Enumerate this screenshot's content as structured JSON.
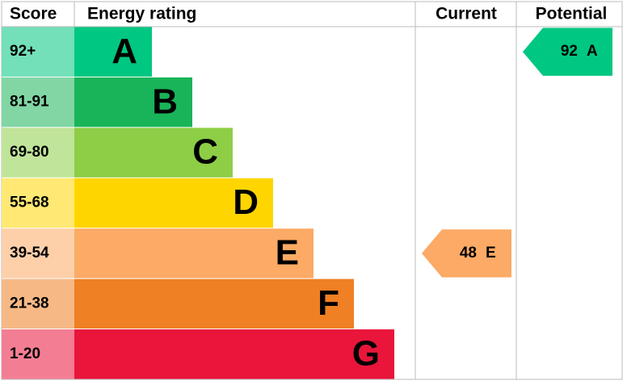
{
  "chart_data": {
    "type": "energy-rating",
    "headers": {
      "score": "Score",
      "rating": "Energy rating",
      "current": "Current",
      "potential": "Potential"
    },
    "bands": [
      {
        "score": "92+",
        "letter": "A",
        "color": "#00c781"
      },
      {
        "score": "81-91",
        "letter": "B",
        "color": "#19b459"
      },
      {
        "score": "69-80",
        "letter": "C",
        "color": "#8dce46"
      },
      {
        "score": "55-68",
        "letter": "D",
        "color": "#ffd500"
      },
      {
        "score": "39-54",
        "letter": "E",
        "color": "#fcaa65"
      },
      {
        "score": "21-38",
        "letter": "F",
        "color": "#ef8023"
      },
      {
        "score": "1-20",
        "letter": "G",
        "color": "#e9153b"
      }
    ],
    "current": {
      "value": 48,
      "band": "E"
    },
    "potential": {
      "value": 92,
      "band": "A"
    }
  }
}
